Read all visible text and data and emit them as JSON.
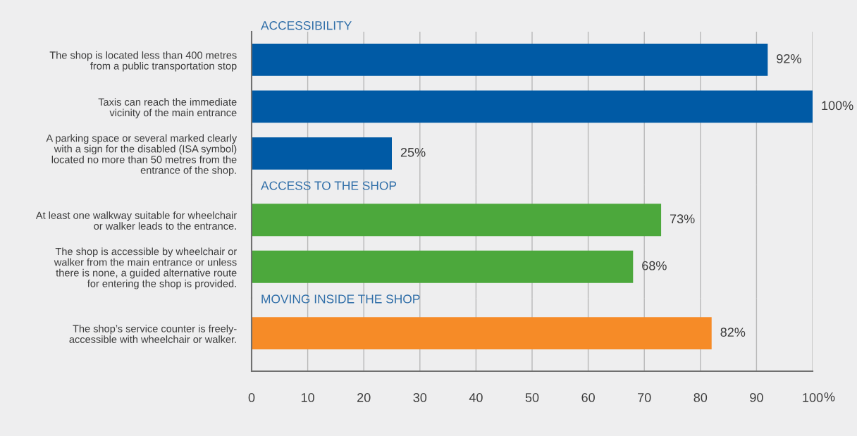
{
  "chart_data": [
    {
      "type": "bar",
      "orientation": "horizontal",
      "title": "ACCESSIBILITY",
      "categories": [
        "The shop is located less than 400 metres\nfrom a public transportation stop",
        "Taxis can reach the immediate\nvicinity of the main entrance",
        "A parking space or several marked clearly\nwith a sign for the disabled (ISA symbol)\nlocated no more than 50 metres from the\nentrance of the shop."
      ],
      "values": [
        92,
        100,
        25
      ],
      "colors": [
        "#005aa5",
        "#005aa5",
        "#005aa5"
      ],
      "value_labels": [
        "92%",
        "100%",
        "25%"
      ],
      "xlim": [
        0,
        100
      ],
      "xticks": [
        0,
        10,
        20,
        30,
        40,
        50,
        60,
        70,
        80,
        90,
        100
      ],
      "grid": "x",
      "tick_labels": "y"
    },
    {
      "type": "bar",
      "orientation": "horizontal",
      "title": "ACCESS TO THE SHOP",
      "categories": [
        "At least one walkway suitable for wheelchair\nor walker leads to the entrance.",
        "The shop is accessible by wheelchair or\nwalker from the main entrance or unless\nthere is none, a guided alternative route\nfor entering the shop is provided."
      ],
      "values": [
        73,
        68
      ],
      "colors": [
        "#4ca83c",
        "#4ca83c"
      ],
      "value_labels": [
        "73%",
        "68%"
      ],
      "xlim": [
        0,
        100
      ],
      "xticks": [
        0,
        10,
        20,
        30,
        40,
        50,
        60,
        70,
        80,
        90,
        100
      ],
      "grid": "x",
      "tick_labels": "y"
    },
    {
      "type": "bar",
      "orientation": "horizontal",
      "title": "MOVING INSIDE THE SHOP",
      "categories": [
        "The shop’s service counter is freely-\naccessible with wheelchair or walker."
      ],
      "values": [
        82
      ],
      "colors": [
        "#f68b27"
      ],
      "value_labels": [
        "82%"
      ],
      "xlim": [
        0,
        100
      ],
      "xticks": [
        0,
        10,
        20,
        30,
        40,
        50,
        60,
        70,
        80,
        90,
        100
      ],
      "xlabel": "%",
      "grid": "x"
    }
  ]
}
